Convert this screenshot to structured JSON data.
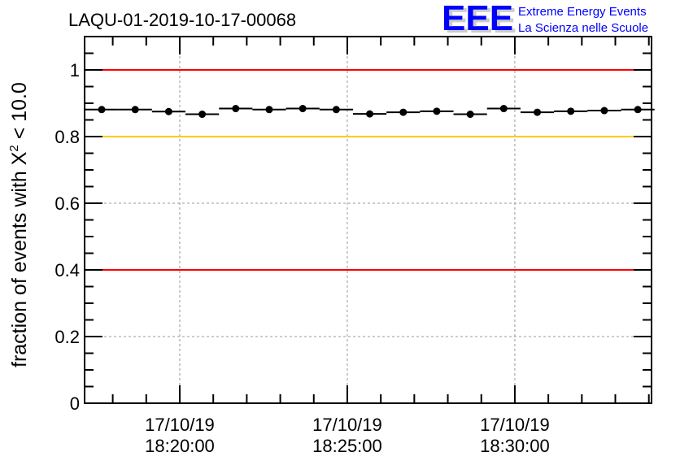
{
  "chart_data": {
    "type": "scatter",
    "title": "LAQU-01-2019-10-17-00068",
    "ylabel": "fraction of events with X",
    "ylabel_sup": "2",
    "ylabel_tail": " < 10.0",
    "xlabel": "",
    "x_unit": "minutes after 18:00 on 17/10/19",
    "xlim": [
      17.16,
      34.08
    ],
    "ylim": [
      0,
      1.1
    ],
    "grid": true,
    "yticks": [
      0,
      0.2,
      0.4,
      0.6,
      0.8,
      1
    ],
    "ytick_labels": [
      "0",
      "0.2",
      "0.4",
      "0.6",
      "0.8",
      "1"
    ],
    "xticks": [
      20,
      25,
      30
    ],
    "xtick_labels": [
      {
        "date": "17/10/19",
        "time": "18:20:00"
      },
      {
        "date": "17/10/19",
        "time": "18:25:00"
      },
      {
        "date": "17/10/19",
        "time": "18:30:00"
      }
    ],
    "bin_width": 1,
    "x": [
      17.67,
      18.67,
      19.67,
      20.67,
      21.67,
      22.67,
      23.67,
      24.67,
      25.67,
      26.67,
      27.67,
      28.67,
      29.67,
      30.67,
      31.67,
      32.67,
      33.67
    ],
    "values": [
      0.881,
      0.881,
      0.875,
      0.867,
      0.884,
      0.881,
      0.884,
      0.881,
      0.868,
      0.873,
      0.876,
      0.867,
      0.884,
      0.873,
      0.876,
      0.878,
      0.881
    ],
    "reference_lines": [
      {
        "y": 1.0,
        "color": "#ff0000"
      },
      {
        "y": 0.8,
        "color": "#ffcc00"
      },
      {
        "y": 0.4,
        "color": "#ff0000"
      }
    ]
  },
  "logo": {
    "mark": "EEE",
    "line1": "Extreme Energy Events",
    "line2": "La Scienza nelle Scuole",
    "color": "#0000ff"
  }
}
